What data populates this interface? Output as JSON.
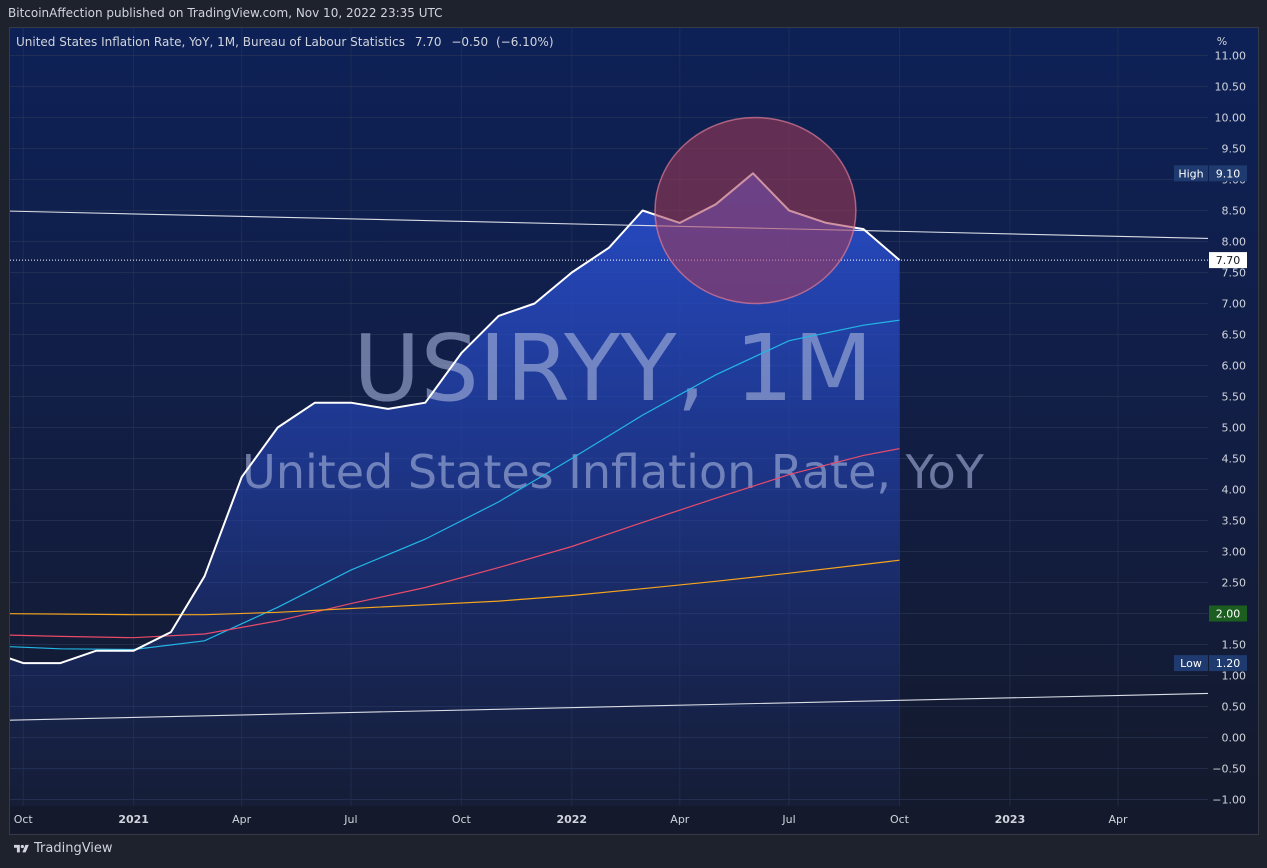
{
  "header": {
    "published_line": "BitcoinAffection published on TradingView.com, Nov 10, 2022 23:35 UTC"
  },
  "legend": {
    "series_title": "United States Inflation Rate, YoY, 1M, Bureau of Labour Statistics",
    "last_value": "7.70",
    "change": "−0.50",
    "change_pct": "(−6.10%)"
  },
  "watermark": {
    "symbol": "USIRYY, 1M",
    "description": "United States Inflation Rate, YoY"
  },
  "footer": {
    "brand": "TradingView"
  },
  "colors": {
    "background": "#131722",
    "area_fill": "#2546b8",
    "main_line": "#ffffff",
    "ma_fast": "#22b7e6",
    "ma_mid": "#e84c6a",
    "ma_slow": "#f7a51c",
    "highlight_circle": "#a83a55",
    "high_label_bg": "#1e3a6e",
    "target_label_bg": "#1b5e20"
  },
  "chart_data": {
    "type": "area",
    "title": "United States Inflation Rate, YoY",
    "y_unit": "%",
    "ylim": [
      -1.0,
      11.0
    ],
    "y_ticks": [
      "11.00",
      "10.50",
      "10.00",
      "9.50",
      "9.00",
      "8.50",
      "8.00",
      "7.50",
      "7.00",
      "6.50",
      "6.00",
      "5.50",
      "5.00",
      "4.50",
      "4.00",
      "3.50",
      "3.00",
      "2.50",
      "2.00",
      "1.50",
      "1.00",
      "0.50",
      "0.00",
      "−0.50",
      "−1.00"
    ],
    "x_ticks": [
      "Oct",
      "2021",
      "Apr",
      "Jul",
      "Oct",
      "2022",
      "Apr",
      "Jul",
      "Oct",
      "2023",
      "Apr"
    ],
    "x_tick_months": [
      "2020-10",
      "2021-01",
      "2021-04",
      "2021-07",
      "2021-10",
      "2022-01",
      "2022-04",
      "2022-07",
      "2022-10",
      "2023-01",
      "2023-04"
    ],
    "x_range": [
      "2020-09-20",
      "2023-06-15"
    ],
    "series": [
      {
        "role": "main",
        "x": [
          "2020-09",
          "2020-10",
          "2020-11",
          "2020-12",
          "2021-01",
          "2021-02",
          "2021-03",
          "2021-04",
          "2021-05",
          "2021-06",
          "2021-07",
          "2021-08",
          "2021-09",
          "2021-10",
          "2021-11",
          "2021-12",
          "2022-01",
          "2022-02",
          "2022-03",
          "2022-04",
          "2022-05",
          "2022-06",
          "2022-07",
          "2022-08",
          "2022-09",
          "2022-10"
        ],
        "y": [
          1.4,
          1.2,
          1.2,
          1.4,
          1.4,
          1.7,
          2.6,
          4.2,
          5.0,
          5.4,
          5.4,
          5.3,
          5.4,
          6.2,
          6.8,
          7.0,
          7.5,
          7.9,
          8.5,
          8.3,
          8.6,
          9.1,
          8.5,
          8.3,
          8.2,
          7.7
        ]
      },
      {
        "role": "moving-average-fast",
        "x": [
          "2020-09",
          "2020-11",
          "2021-01",
          "2021-03",
          "2021-05",
          "2021-07",
          "2021-09",
          "2021-11",
          "2022-01",
          "2022-03",
          "2022-05",
          "2022-07",
          "2022-09",
          "2022-10"
        ],
        "y": [
          1.48,
          1.43,
          1.42,
          1.56,
          2.1,
          2.7,
          3.2,
          3.8,
          4.5,
          5.2,
          5.85,
          6.4,
          6.65,
          6.73
        ]
      },
      {
        "role": "moving-average-mid",
        "x": [
          "2020-09",
          "2020-11",
          "2021-01",
          "2021-03",
          "2021-05",
          "2021-07",
          "2021-09",
          "2021-11",
          "2022-01",
          "2022-03",
          "2022-05",
          "2022-07",
          "2022-09",
          "2022-10"
        ],
        "y": [
          1.66,
          1.63,
          1.61,
          1.67,
          1.88,
          2.16,
          2.42,
          2.74,
          3.08,
          3.47,
          3.86,
          4.24,
          4.55,
          4.66
        ]
      },
      {
        "role": "moving-average-slow",
        "x": [
          "2020-09",
          "2021-01",
          "2021-03",
          "2021-05",
          "2021-07",
          "2021-09",
          "2021-11",
          "2022-01",
          "2022-03",
          "2022-05",
          "2022-07",
          "2022-09",
          "2022-10"
        ],
        "y": [
          2.0,
          1.98,
          1.98,
          2.02,
          2.08,
          2.14,
          2.2,
          2.29,
          2.4,
          2.52,
          2.65,
          2.79,
          2.86
        ]
      }
    ],
    "trendlines": [
      {
        "x": [
          "2020-09-20",
          "2023-06-15"
        ],
        "y": [
          8.49,
          8.05
        ]
      },
      {
        "x": [
          "2020-09-20",
          "2023-06-15"
        ],
        "y": [
          0.28,
          0.71
        ]
      }
    ],
    "current_price_line": {
      "value": 7.7,
      "label": "7.70"
    },
    "price_labels": [
      {
        "tag": "High",
        "value": 9.1,
        "label": "9.10"
      },
      {
        "value": 2.0,
        "label": "2.00"
      },
      {
        "tag": "Low",
        "value": 1.2,
        "label": "1.20"
      }
    ],
    "highlight": {
      "center_x": "2022-06-03",
      "center_y": 8.5,
      "radius_y": 1.5
    }
  }
}
